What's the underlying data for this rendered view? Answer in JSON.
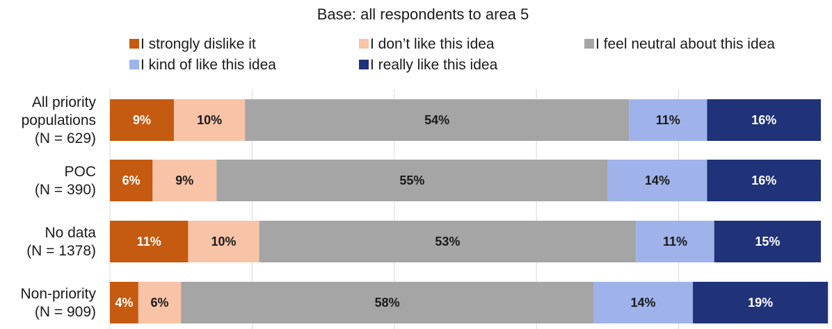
{
  "chart_data": {
    "type": "bar",
    "orientation": "horizontal",
    "stacked": true,
    "percent_stacked": true,
    "title": "Base: all respondents to area 5",
    "categories": [
      [
        "All priority",
        "populations",
        "(N = 629)"
      ],
      [
        "POC",
        "(N = 390)"
      ],
      [
        "No data",
        "(N = 1378)"
      ],
      [
        "Non-priority",
        "(N = 909)"
      ]
    ],
    "series": [
      {
        "name": "I strongly dislike it",
        "color": "#c55a11",
        "label_color": "#ffffff",
        "values": [
          9,
          6,
          11,
          4
        ]
      },
      {
        "name": "I don’t like this idea",
        "color": "#f8c3a6",
        "label_color": "#1a1a1a",
        "values": [
          10,
          9,
          10,
          6
        ]
      },
      {
        "name": "I feel neutral about this idea",
        "color": "#a5a5a5",
        "label_color": "#1a1a1a",
        "values": [
          54,
          55,
          53,
          58
        ]
      },
      {
        "name": "I kind of like this idea",
        "color": "#9fb3ea",
        "label_color": "#1a1a1a",
        "values": [
          11,
          14,
          11,
          14
        ]
      },
      {
        "name": "I really like this idea",
        "color": "#203278",
        "label_color": "#ffffff",
        "values": [
          16,
          16,
          15,
          19
        ]
      }
    ],
    "xlim": [
      0,
      100
    ],
    "value_suffix": "%",
    "grid": true,
    "legend_position": "top"
  }
}
